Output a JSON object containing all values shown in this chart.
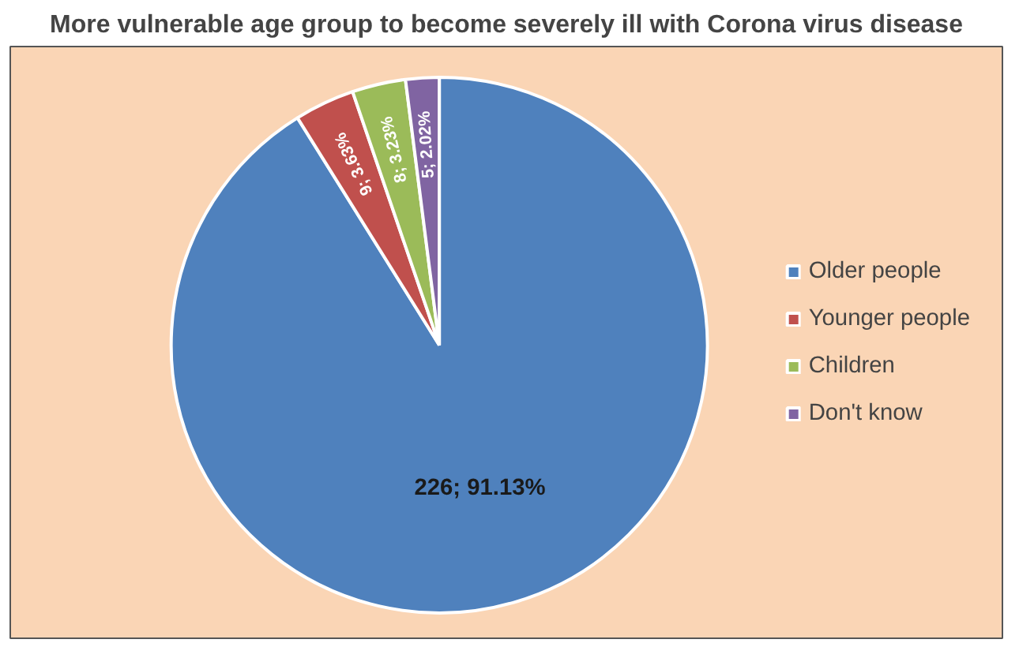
{
  "chart_data": {
    "type": "pie",
    "title": "More vulnerable age group to become severely ill with Corona virus disease",
    "categories": [
      "Older people",
      "Younger people",
      "Children",
      "Don't know"
    ],
    "values": [
      226,
      9,
      8,
      5
    ],
    "colors": [
      "#4f81bd",
      "#c0504d",
      "#9bbb59",
      "#8064a2"
    ],
    "value_labels": [
      "226; 91.13%",
      "9; 3.63%",
      "8; 3.23%",
      "5; 2.02%"
    ],
    "legend": "right"
  }
}
